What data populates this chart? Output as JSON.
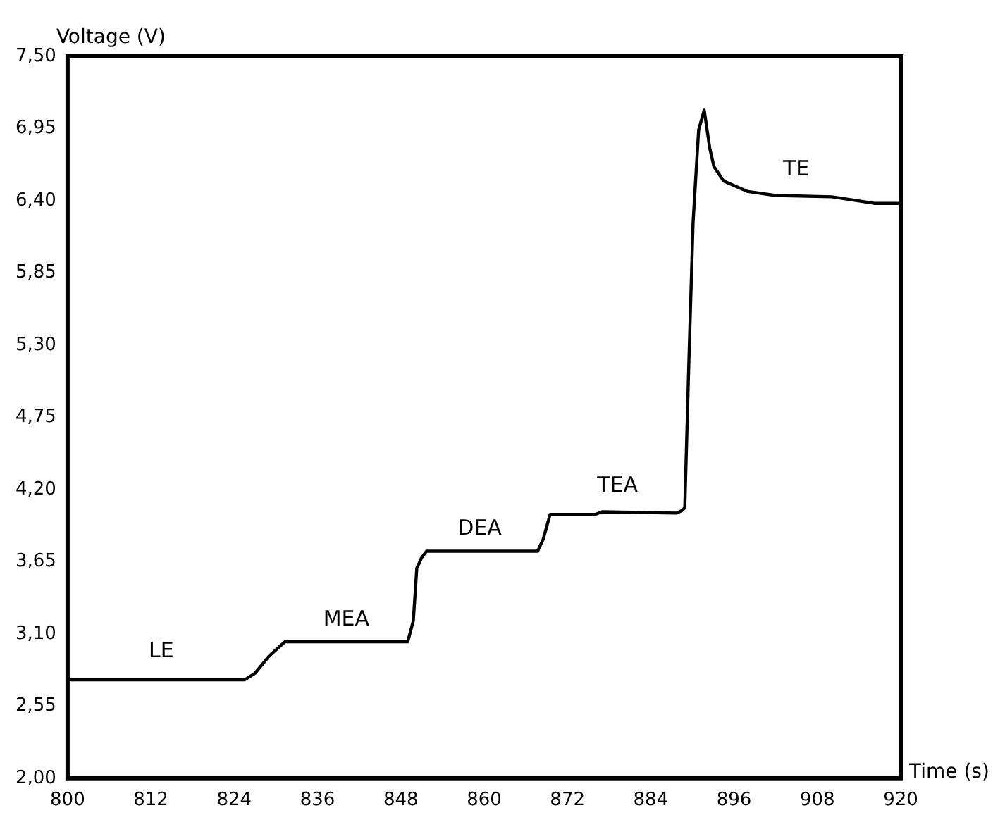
{
  "chart_data": {
    "type": "line",
    "xlabel": "Time (s)",
    "ylabel": "Voltage (V)",
    "x": [
      800,
      825.5,
      827,
      829,
      831.3,
      849,
      849.8,
      850.3,
      851,
      851.7,
      867.7,
      868.5,
      869.5,
      876,
      877,
      887.7,
      888.5,
      888.9,
      889.5,
      890.1,
      890.9,
      891.7,
      892.5,
      893.1,
      894.5,
      898,
      902,
      910.1,
      916.2,
      920
    ],
    "series": [
      {
        "color": "#000000",
        "values": [
          2.75,
          2.75,
          2.8,
          2.93,
          3.04,
          3.04,
          3.2,
          3.6,
          3.68,
          3.73,
          3.73,
          3.82,
          4.01,
          4.01,
          4.03,
          4.02,
          4.04,
          4.06,
          5.19,
          6.24,
          6.94,
          7.09,
          6.8,
          6.66,
          6.55,
          6.47,
          6.44,
          6.43,
          6.38,
          6.38
        ]
      }
    ],
    "xlim": [
      800,
      920
    ],
    "xticks": [
      800,
      812,
      824,
      836,
      848,
      860,
      872,
      884,
      896,
      908,
      920
    ],
    "ylim": [
      2,
      7.5
    ],
    "yticks": [
      {
        "value": 2,
        "label": "2,00"
      },
      {
        "value": 2.55,
        "label": "2,55"
      },
      {
        "value": 3.1,
        "label": "3,10"
      },
      {
        "value": 3.65,
        "label": "3,65"
      },
      {
        "value": 4.2,
        "label": "4,20"
      },
      {
        "value": 4.75,
        "label": "4,75"
      },
      {
        "value": 5.3,
        "label": "5,30"
      },
      {
        "value": 5.85,
        "label": "5,85"
      },
      {
        "value": 6.4,
        "label": "6,40"
      },
      {
        "value": 6.95,
        "label": "6,95"
      },
      {
        "value": 7.5,
        "label": "7,50"
      }
    ],
    "annotations": [
      "LE",
      "MEA",
      "DEA",
      "TEA",
      "TE"
    ],
    "grid": false,
    "legend": false,
    "marker": "none",
    "line_style": "solid"
  }
}
